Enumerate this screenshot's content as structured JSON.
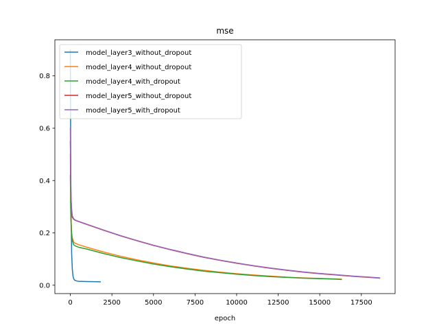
{
  "chart_data": {
    "type": "line",
    "title": "mse",
    "xlabel": "epoch",
    "ylabel": "",
    "xlim": [
      -930,
      19530
    ],
    "ylim": [
      -0.032,
      0.938
    ],
    "xticks": [
      0,
      2500,
      5000,
      7500,
      10000,
      12500,
      15000,
      17500
    ],
    "xtick_labels": [
      "0",
      "2500",
      "5000",
      "7500",
      "10000",
      "12500",
      "15000",
      "17500"
    ],
    "yticks": [
      0.0,
      0.2,
      0.4,
      0.6,
      0.8
    ],
    "ytick_labels": [
      "0.0",
      "0.2",
      "0.4",
      "0.6",
      "0.8"
    ],
    "grid": false,
    "legend_position": "top-left",
    "series": [
      {
        "name": "model_layer3_without_dropout",
        "color": "#1f77b4",
        "x": [
          0,
          15,
          30,
          50,
          80,
          120,
          160,
          200,
          250,
          300,
          400,
          500,
          700,
          1000,
          1400,
          1800
        ],
        "y": [
          0.9,
          0.62,
          0.42,
          0.25,
          0.12,
          0.06,
          0.035,
          0.025,
          0.02,
          0.018,
          0.016,
          0.015,
          0.0145,
          0.014,
          0.0135,
          0.013
        ]
      },
      {
        "name": "model_layer4_without_dropout",
        "color": "#ff7f0e",
        "x": [
          0,
          20,
          40,
          80,
          120,
          200,
          300,
          500,
          1000,
          2000,
          3000,
          4000,
          5000,
          6000,
          7000,
          8000,
          9000,
          10000,
          11000,
          12000,
          13000,
          14000,
          15000,
          16000,
          16300
        ],
        "y": [
          0.5,
          0.33,
          0.25,
          0.2,
          0.18,
          0.165,
          0.16,
          0.155,
          0.145,
          0.127,
          0.111,
          0.097,
          0.085,
          0.074,
          0.065,
          0.057,
          0.05,
          0.044,
          0.039,
          0.035,
          0.031,
          0.028,
          0.026,
          0.024,
          0.023
        ]
      },
      {
        "name": "model_layer4_with_dropout",
        "color": "#2ca02c",
        "x": [
          0,
          20,
          40,
          80,
          120,
          200,
          300,
          500,
          1000,
          2000,
          3000,
          4000,
          5000,
          6000,
          7000,
          8000,
          9000,
          10000,
          11000,
          12000,
          13000,
          14000,
          15000,
          16000,
          16300
        ],
        "y": [
          0.42,
          0.3,
          0.24,
          0.19,
          0.17,
          0.155,
          0.15,
          0.145,
          0.138,
          0.121,
          0.106,
          0.093,
          0.081,
          0.071,
          0.062,
          0.054,
          0.048,
          0.042,
          0.037,
          0.033,
          0.03,
          0.027,
          0.025,
          0.023,
          0.022
        ]
      },
      {
        "name": "model_layer5_without_dropout",
        "color": "#d62728",
        "x": [
          0,
          20,
          40,
          80,
          120,
          200,
          300,
          500,
          1000,
          2000,
          3000,
          4000,
          5000,
          6000,
          7000,
          8000,
          9000,
          10000,
          11000,
          12000,
          13000,
          14000,
          15000,
          16000,
          17000,
          18000,
          18600
        ],
        "y": [
          0.55,
          0.4,
          0.33,
          0.28,
          0.26,
          0.252,
          0.248,
          0.243,
          0.232,
          0.21,
          0.189,
          0.17,
          0.152,
          0.136,
          0.121,
          0.107,
          0.095,
          0.084,
          0.074,
          0.065,
          0.057,
          0.05,
          0.044,
          0.039,
          0.034,
          0.03,
          0.027
        ]
      },
      {
        "name": "model_layer5_with_dropout",
        "color": "#9467bd",
        "x": [
          0,
          20,
          40,
          80,
          120,
          200,
          300,
          500,
          1000,
          2000,
          3000,
          4000,
          5000,
          6000,
          7000,
          8000,
          9000,
          10000,
          11000,
          12000,
          13000,
          14000,
          15000,
          16000,
          17000,
          18000,
          18600
        ],
        "y": [
          0.6,
          0.42,
          0.34,
          0.29,
          0.265,
          0.254,
          0.249,
          0.244,
          0.233,
          0.211,
          0.19,
          0.171,
          0.153,
          0.137,
          0.122,
          0.108,
          0.096,
          0.085,
          0.075,
          0.066,
          0.058,
          0.051,
          0.045,
          0.04,
          0.035,
          0.031,
          0.028
        ]
      }
    ]
  }
}
